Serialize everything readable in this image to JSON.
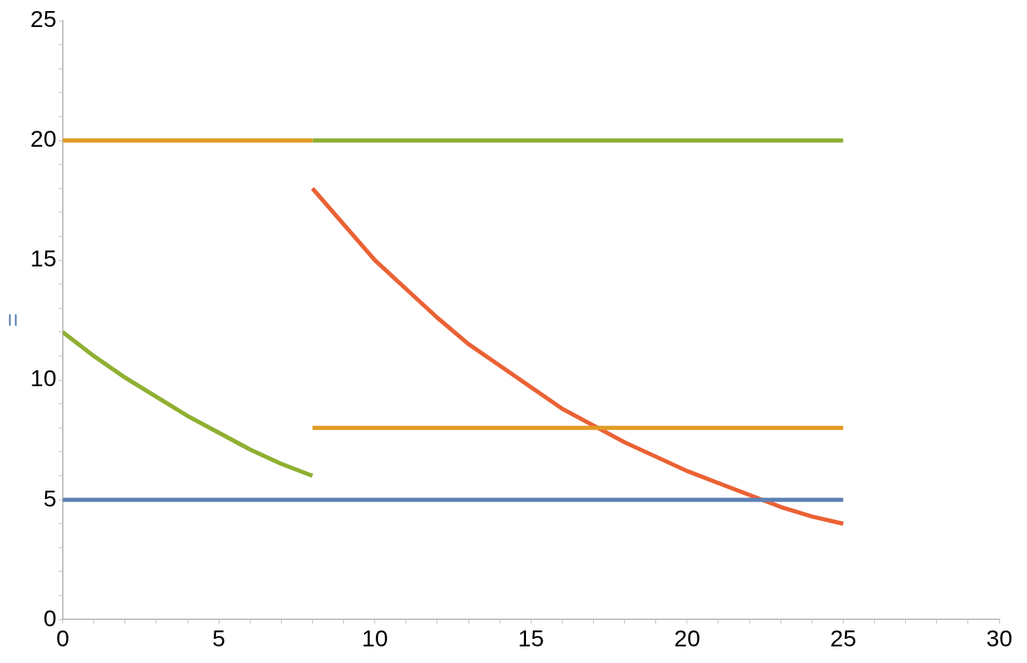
{
  "chart_data": {
    "type": "line",
    "ylabel": "=",
    "xlim": [
      0,
      30
    ],
    "ylim": [
      0,
      25
    ],
    "xticks": [
      0,
      {
        "value": 1,
        "label": null
      },
      {
        "value": 2,
        "label": null
      },
      {
        "value": 3,
        "label": null
      },
      {
        "value": 4,
        "label": null
      },
      5,
      {
        "value": 6,
        "label": null
      },
      {
        "value": 7,
        "label": null
      },
      {
        "value": 8,
        "label": null
      },
      {
        "value": 9,
        "label": null
      },
      10,
      {
        "value": 11,
        "label": null
      },
      {
        "value": 12,
        "label": null
      },
      {
        "value": 13,
        "label": null
      },
      {
        "value": 14,
        "label": null
      },
      15,
      {
        "value": 16,
        "label": null
      },
      {
        "value": 17,
        "label": null
      },
      {
        "value": 18,
        "label": null
      },
      {
        "value": 19,
        "label": null
      },
      20,
      {
        "value": 21,
        "label": null
      },
      {
        "value": 22,
        "label": null
      },
      {
        "value": 23,
        "label": null
      },
      {
        "value": 24,
        "label": null
      },
      25,
      {
        "value": 26,
        "label": null
      },
      {
        "value": 27,
        "label": null
      },
      {
        "value": 28,
        "label": null
      },
      {
        "value": 29,
        "label": null
      },
      30
    ],
    "yticks": [
      0,
      {
        "value": 1,
        "label": null
      },
      {
        "value": 2,
        "label": null
      },
      {
        "value": 3,
        "label": null
      },
      {
        "value": 4,
        "label": null
      },
      5,
      {
        "value": 6,
        "label": null
      },
      {
        "value": 7,
        "label": null
      },
      {
        "value": 8,
        "label": null
      },
      {
        "value": 9,
        "label": null
      },
      10,
      {
        "value": 11,
        "label": null
      },
      {
        "value": 12,
        "label": null
      },
      {
        "value": 13,
        "label": null
      },
      {
        "value": 14,
        "label": null
      },
      15,
      {
        "value": 16,
        "label": null
      },
      {
        "value": 17,
        "label": null
      },
      {
        "value": 18,
        "label": null
      },
      {
        "value": 19,
        "label": null
      },
      20,
      {
        "value": 21,
        "label": null
      },
      {
        "value": 22,
        "label": null
      },
      {
        "value": 23,
        "label": null
      },
      {
        "value": 24,
        "label": null
      },
      25
    ],
    "grid": false,
    "legend": false,
    "marker": "none",
    "line_style": "solid",
    "series": [
      {
        "color": "#5e81b5",
        "x": [
          0,
          25
        ],
        "values": [
          5,
          5
        ]
      },
      {
        "color": "#e19c24",
        "x": [
          0,
          8
        ],
        "values": [
          20,
          20
        ]
      },
      {
        "color": "#e19c24",
        "x": [
          8,
          25
        ],
        "values": [
          8,
          8
        ]
      },
      {
        "color": "#8fb032",
        "x": [
          0,
          1,
          2,
          3,
          4,
          5,
          6,
          7,
          8
        ],
        "values": [
          12,
          11.0,
          10.1,
          9.3,
          8.5,
          7.8,
          7.1,
          6.5,
          6.0
        ]
      },
      {
        "color": "#8fb032",
        "x": [
          8,
          25
        ],
        "values": [
          20,
          20
        ]
      },
      {
        "color": "#eb6235",
        "x": [
          8,
          9,
          10,
          11,
          12,
          13,
          14,
          15,
          16,
          17,
          18,
          19,
          20,
          21,
          22,
          23,
          24,
          25
        ],
        "values": [
          18,
          16.5,
          15.0,
          13.8,
          12.6,
          11.5,
          10.6,
          9.7,
          8.8,
          8.1,
          7.4,
          6.8,
          6.2,
          5.7,
          5.2,
          4.7,
          4.3,
          4.0
        ]
      }
    ]
  }
}
